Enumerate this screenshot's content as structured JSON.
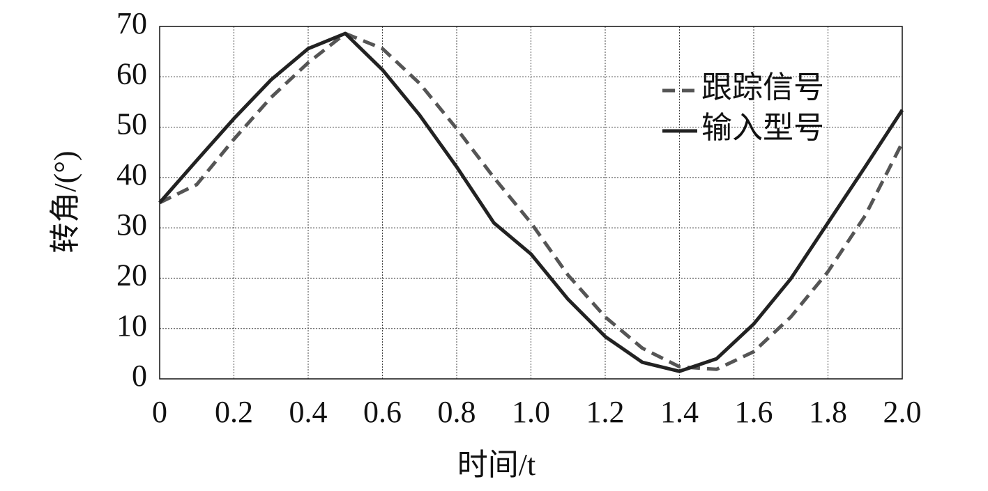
{
  "chart_data": {
    "type": "line",
    "x_label": "时间/t",
    "y_label": "转角/(°)",
    "x": [
      0,
      0.1,
      0.2,
      0.3,
      0.4,
      0.5,
      0.6,
      0.7,
      0.8,
      0.9,
      1.0,
      1.1,
      1.2,
      1.3,
      1.4,
      1.5,
      1.6,
      1.7,
      1.8,
      1.9,
      2.0
    ],
    "series": [
      {
        "name": "跟踪信号",
        "color": "#555555",
        "dash": true,
        "values": [
          35.0,
          38.6,
          47.6,
          55.9,
          62.8,
          68.6,
          65.6,
          58.7,
          49.7,
          40.0,
          31.0,
          20.6,
          12.3,
          6.1,
          2.4,
          1.9,
          5.4,
          12.3,
          21.3,
          32.4,
          46.9
        ]
      },
      {
        "name": "输入型号",
        "color": "#222222",
        "dash": false,
        "values": [
          35.0,
          43.4,
          51.7,
          59.4,
          65.6,
          68.6,
          61.4,
          52.4,
          42.1,
          31.0,
          24.8,
          15.8,
          8.4,
          3.3,
          1.5,
          4.0,
          10.9,
          19.9,
          31.0,
          42.1,
          53.4
        ]
      }
    ],
    "xlim": [
      0,
      2.0
    ],
    "xticks": [
      0,
      0.2,
      0.4,
      0.6,
      0.8,
      {
        "value": 1.0,
        "label": "1.0"
      },
      1.2,
      1.4,
      1.6,
      1.8,
      {
        "value": 2.0,
        "label": "2.0"
      }
    ],
    "ylim": [
      0,
      70
    ],
    "yticks": [
      0,
      10,
      20,
      30,
      40,
      50,
      60,
      70
    ],
    "grid": true,
    "legend": "upper right"
  }
}
